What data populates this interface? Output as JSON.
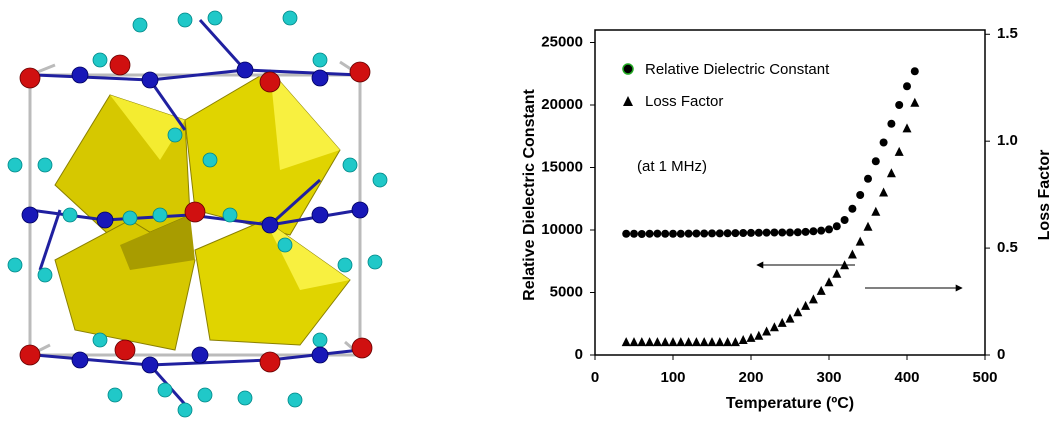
{
  "chart_data": {
    "type": "scatter",
    "xlabel": "Temperature (ºC)",
    "ylabel": "Relative Dielectric Constant",
    "y2label": "Loss Factor",
    "annotation": "(at 1 MHz)",
    "xlim": [
      0,
      500
    ],
    "xticks": [
      0,
      100,
      200,
      300,
      400,
      500
    ],
    "ylim": [
      0,
      26000
    ],
    "yticks": [
      0,
      5000,
      10000,
      15000,
      20000,
      25000
    ],
    "y2lim": [
      0,
      1.52
    ],
    "y2ticks": [
      0,
      0.5,
      {
        "value": 1,
        "label": "1.0"
      },
      1.5
    ],
    "x": [
      40,
      50,
      60,
      70,
      80,
      90,
      100,
      110,
      120,
      130,
      140,
      150,
      160,
      170,
      180,
      190,
      200,
      210,
      220,
      230,
      240,
      250,
      260,
      270,
      280,
      290,
      300,
      310,
      320,
      330,
      340,
      350,
      360,
      370,
      380,
      390,
      400,
      410
    ],
    "series": [
      {
        "name": "Relative Dielectric Constant",
        "color": "#000000",
        "marker": "circle",
        "values": [
          9700,
          9700,
          9680,
          9700,
          9710,
          9700,
          9700,
          9700,
          9710,
          9720,
          9720,
          9730,
          9730,
          9740,
          9750,
          9760,
          9770,
          9780,
          9790,
          9800,
          9800,
          9800,
          9820,
          9850,
          9900,
          9950,
          10050,
          10300,
          10800,
          11700,
          12800,
          14100,
          15500,
          17000,
          18500,
          20000,
          21500,
          22700
        ]
      },
      {
        "name": "Loss Factor",
        "color": "#000000",
        "marker": "triangle",
        "axis": "y2",
        "values": [
          0.06,
          0.06,
          0.06,
          0.06,
          0.06,
          0.06,
          0.06,
          0.06,
          0.06,
          0.06,
          0.06,
          0.06,
          0.06,
          0.06,
          0.06,
          0.07,
          0.08,
          0.09,
          0.11,
          0.13,
          0.15,
          0.17,
          0.2,
          0.23,
          0.26,
          0.3,
          0.34,
          0.38,
          0.42,
          0.47,
          0.53,
          0.6,
          0.67,
          0.76,
          0.85,
          0.95,
          1.06,
          1.18
        ]
      }
    ]
  }
}
